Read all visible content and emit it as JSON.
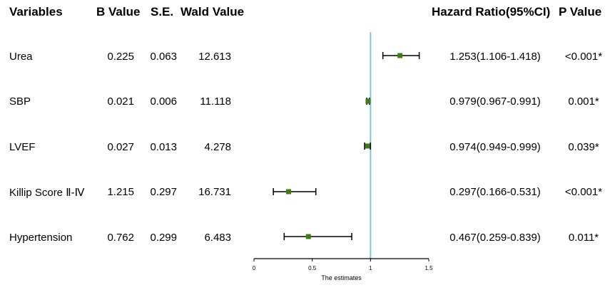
{
  "headers": {
    "variables": "Variables",
    "b_value": "B Value",
    "se": "S.E.",
    "wald": "Wald Value",
    "hr": "Hazard Ratio(95%CI)",
    "p": "P Value"
  },
  "rows": [
    {
      "variable": "Urea",
      "b": "0.225",
      "se": "0.063",
      "wald": "12.613",
      "hr_text": "1.253(1.106-1.418)",
      "p": "<0.001*"
    },
    {
      "variable": "SBP",
      "b": "0.021",
      "se": "0.006",
      "wald": "11.118",
      "hr_text": "0.979(0.967-0.991)",
      "p": "0.001*"
    },
    {
      "variable": "LVEF",
      "b": "0.027",
      "se": "0.013",
      "wald": "4.278",
      "hr_text": "0.974(0.949-0.999)",
      "p": "0.039*"
    },
    {
      "variable": "Killip Score Ⅱ-Ⅳ",
      "b": "1.215",
      "se": "0.297",
      "wald": "16.731",
      "hr_text": "0.297(0.166-0.531)",
      "p": "<0.001*"
    },
    {
      "variable": "Hypertension",
      "b": "0.762",
      "se": "0.299",
      "wald": "6.483",
      "hr_text": "0.467(0.259-0.839)",
      "p": "0.011*"
    }
  ],
  "chart_data": {
    "type": "scatter",
    "xlabel": "The estimates",
    "xlim": [
      0,
      1.5
    ],
    "xticks": [
      "0",
      "0.5",
      "1",
      "1.5"
    ],
    "reference_line": 1,
    "grid": false,
    "colors": {
      "point": "#3f7d12",
      "ref_line": "#7ec8d6",
      "ci": "#000000"
    },
    "points": [
      {
        "label": "Urea",
        "estimate": 1.253,
        "lower": 1.106,
        "upper": 1.418
      },
      {
        "label": "SBP",
        "estimate": 0.979,
        "lower": 0.967,
        "upper": 0.991
      },
      {
        "label": "LVEF",
        "estimate": 0.974,
        "lower": 0.949,
        "upper": 0.999
      },
      {
        "label": "Killip Score Ⅱ-Ⅳ",
        "estimate": 0.297,
        "lower": 0.166,
        "upper": 0.531
      },
      {
        "label": "Hypertension",
        "estimate": 0.467,
        "lower": 0.259,
        "upper": 0.839
      }
    ]
  }
}
